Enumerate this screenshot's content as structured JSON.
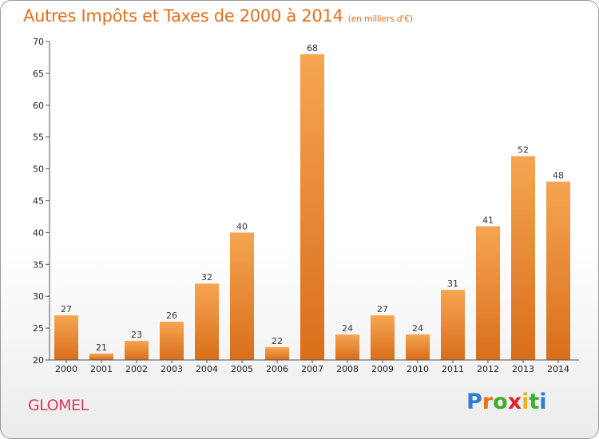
{
  "title": "Autres Impôts et Taxes de 2000 à 2014",
  "unit": "(en milliers d'€)",
  "commune": "GLOMEL",
  "brand": {
    "letters": [
      "P",
      "r",
      "o",
      "x",
      "i",
      "t",
      "i"
    ],
    "colors": [
      "#2a7fd4",
      "#e8731a",
      "#3fae2a",
      "#d8242a",
      "#e8b51a",
      "#3fae2a",
      "#2a7fd4"
    ]
  },
  "colors": {
    "bar_light": "#f6a552",
    "bar_dark": "#d86e1a",
    "title": "#e0701e",
    "commune": "#d23f5c"
  },
  "chart_data": {
    "type": "bar",
    "categories": [
      "2000",
      "2001",
      "2002",
      "2003",
      "2004",
      "2005",
      "2006",
      "2007",
      "2008",
      "2009",
      "2010",
      "2011",
      "2012",
      "2013",
      "2014"
    ],
    "values": [
      27,
      21,
      23,
      26,
      32,
      40,
      22,
      68,
      24,
      27,
      24,
      31,
      41,
      52,
      48
    ],
    "ylim": [
      20,
      70
    ],
    "yticks": [
      20,
      25,
      30,
      35,
      40,
      45,
      50,
      55,
      60,
      65,
      70
    ],
    "grid": false,
    "data_labels": true
  }
}
